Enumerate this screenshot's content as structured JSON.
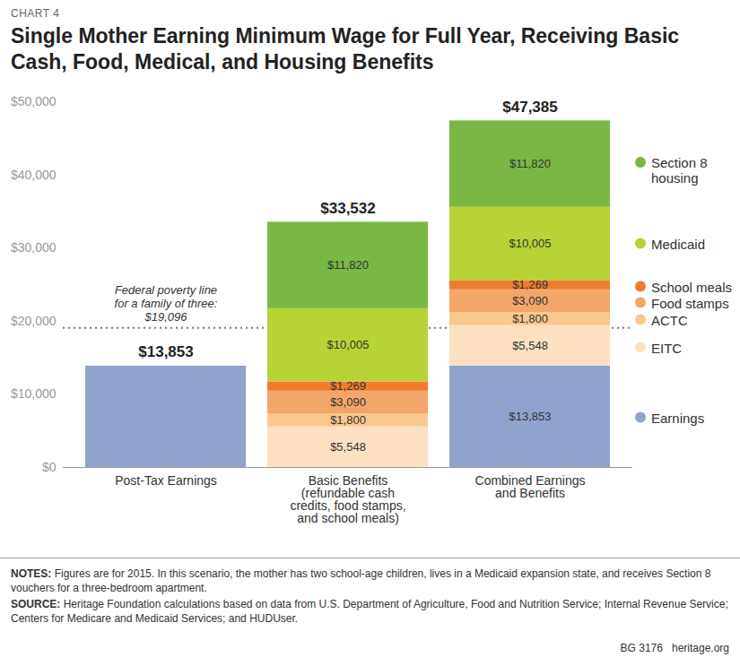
{
  "chart_data": {
    "type": "bar",
    "chart_number": "CHART 4",
    "title": "Single Mother Earning Minimum Wage for Full Year, Receiving Basic Cash, Food, Medical, and Housing Benefits",
    "categories": [
      "Post-Tax Earnings",
      "Basic Benefits\n(refundable cash\ncredits, food stamps,\nand school meals)",
      "Combined Earnings\nand Benefits"
    ],
    "series": [
      {
        "name": "Earnings",
        "color": "#8fa3cc",
        "values": [
          13853,
          null,
          13853
        ],
        "value_labels": [
          null,
          null,
          "$13,853"
        ]
      },
      {
        "name": "EITC",
        "color": "#fde0c0",
        "values": [
          null,
          5548,
          5548
        ],
        "value_labels": [
          null,
          "$5,548",
          "$5,548"
        ]
      },
      {
        "name": "ACTC",
        "color": "#f9c88d",
        "values": [
          null,
          1800,
          1800
        ],
        "value_labels": [
          null,
          "$1,800",
          "$1,800"
        ]
      },
      {
        "name": "Food stamps",
        "color": "#f4a56a",
        "values": [
          null,
          3090,
          3090
        ],
        "value_labels": [
          null,
          "$3,090",
          "$3,090"
        ]
      },
      {
        "name": "School meals",
        "color": "#ef7d2d",
        "values": [
          null,
          1269,
          1269
        ],
        "value_labels": [
          null,
          "$1,269",
          "$1,269"
        ]
      },
      {
        "name": "Medicaid",
        "color": "#b7d335",
        "values": [
          null,
          10005,
          10005
        ],
        "value_labels": [
          null,
          "$10,005",
          "$10,005"
        ]
      },
      {
        "name": "Section 8 housing",
        "color": "#79b844",
        "values": [
          null,
          11820,
          11820
        ],
        "value_labels": [
          null,
          "$11,820",
          "$11,820"
        ]
      }
    ],
    "totals": [
      13853,
      33532,
      47385
    ],
    "total_labels": [
      "$13,853",
      "$33,532",
      "$47,385"
    ],
    "annotations": [
      {
        "text": "Federal poverty line\nfor a family of three:\n$19,096",
        "y": 19096
      }
    ],
    "ylim": [
      0,
      50000
    ],
    "yticks": [
      {
        "value": 0,
        "label": "$0"
      },
      {
        "value": 10000,
        "label": "$10,000"
      },
      {
        "value": 20000,
        "label": "$20,000"
      },
      {
        "value": 30000,
        "label": "$30,000"
      },
      {
        "value": 40000,
        "label": "$40,000"
      },
      {
        "value": 50000,
        "label": "$50,000"
      }
    ],
    "stacked": true,
    "data_labels": true,
    "grid": false,
    "legend": "right",
    "notes_label": "NOTES:",
    "notes": "Figures are for 2015. In this scenario, the mother has two school-age children, lives in a Medicaid expansion state, and receives Section 8 vouchers for a three-bedroom apartment.",
    "source_label": "SOURCE:",
    "source": "Heritage Foundation calculations based on data from U.S. Department of Agriculture, Food and Nutrition Service; Internal Revenue Service; Centers for Medicare and Medicaid Services; and HUDUser.",
    "footer": "BG 3176",
    "credit": "heritage.org"
  }
}
